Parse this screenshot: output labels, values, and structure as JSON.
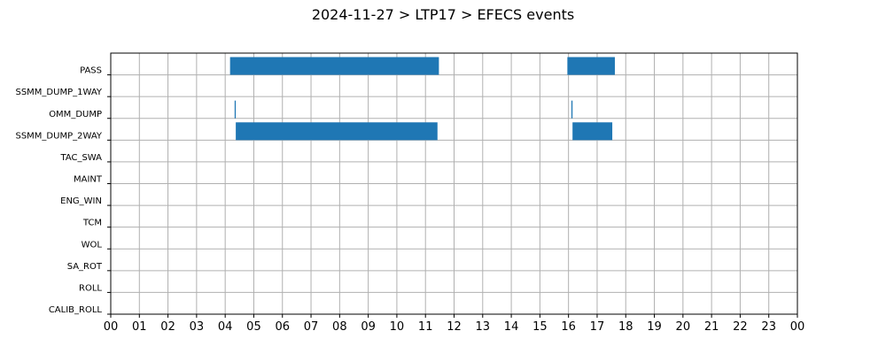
{
  "chart_data": {
    "type": "bar",
    "orientation": "horizontal",
    "title": "2024-11-27 > LTP17 > EFECS events",
    "xlabel": "",
    "ylabel": "",
    "grid": true,
    "xlim": [
      0,
      24
    ],
    "x_tick_labels": [
      "00",
      "01",
      "02",
      "03",
      "04",
      "05",
      "06",
      "07",
      "08",
      "09",
      "10",
      "11",
      "12",
      "13",
      "14",
      "15",
      "16",
      "17",
      "18",
      "19",
      "20",
      "21",
      "22",
      "23",
      "00"
    ],
    "categories": [
      "PASS",
      "SSMM_DUMP_1WAY",
      "OMM_DUMP",
      "SSMM_DUMP_2WAY",
      "TAC_SWA",
      "MAINT",
      "ENG_WIN",
      "TCM",
      "WOL",
      "SA_ROT",
      "ROLL",
      "CALIB_ROLL"
    ],
    "bar_color": "#1f77b4",
    "events": [
      {
        "category": "PASS",
        "start": 4.17,
        "end": 11.47
      },
      {
        "category": "PASS",
        "start": 15.96,
        "end": 17.62
      },
      {
        "category": "OMM_DUMP",
        "start": 4.33,
        "end": 4.37
      },
      {
        "category": "OMM_DUMP",
        "start": 16.1,
        "end": 16.14
      },
      {
        "category": "SSMM_DUMP_2WAY",
        "start": 4.37,
        "end": 11.42
      },
      {
        "category": "SSMM_DUMP_2WAY",
        "start": 16.14,
        "end": 17.53
      }
    ]
  }
}
